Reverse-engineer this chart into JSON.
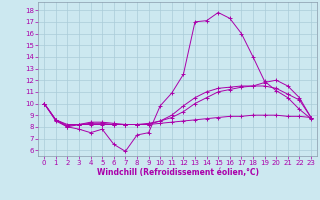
{
  "xlabel": "Windchill (Refroidissement éolien,°C)",
  "background_color": "#cce8f0",
  "grid_color": "#aaccd8",
  "line_color": "#aa00aa",
  "spine_color": "#8899aa",
  "xlim": [
    -0.5,
    23.5
  ],
  "ylim": [
    5.5,
    18.7
  ],
  "xticks": [
    0,
    1,
    2,
    3,
    4,
    5,
    6,
    7,
    8,
    9,
    10,
    11,
    12,
    13,
    14,
    15,
    16,
    17,
    18,
    19,
    20,
    21,
    22,
    23
  ],
  "yticks": [
    6,
    7,
    8,
    9,
    10,
    11,
    12,
    13,
    14,
    15,
    16,
    17,
    18
  ],
  "line1_x": [
    0,
    1,
    2,
    3,
    4,
    5,
    6,
    7,
    8,
    9,
    10,
    11,
    12,
    13,
    14,
    15,
    16,
    17,
    18,
    19,
    20,
    21,
    22,
    23
  ],
  "line1_y": [
    10.0,
    8.5,
    8.0,
    7.8,
    7.5,
    7.8,
    6.5,
    5.9,
    7.3,
    7.5,
    9.8,
    10.9,
    12.5,
    17.0,
    17.1,
    17.8,
    17.3,
    16.0,
    14.0,
    11.9,
    11.1,
    10.5,
    9.5,
    8.7
  ],
  "line2_x": [
    0,
    1,
    2,
    3,
    4,
    5,
    6,
    7,
    8,
    9,
    10,
    11,
    12,
    13,
    14,
    15,
    16,
    17,
    18,
    19,
    20,
    21,
    22,
    23
  ],
  "line2_y": [
    10.0,
    8.6,
    8.1,
    8.2,
    8.3,
    8.3,
    8.2,
    8.2,
    8.2,
    8.3,
    8.5,
    8.8,
    9.3,
    10.0,
    10.5,
    11.0,
    11.2,
    11.4,
    11.5,
    11.8,
    12.0,
    11.5,
    10.5,
    8.8
  ],
  "line3_x": [
    0,
    1,
    2,
    3,
    4,
    5,
    6,
    7,
    8,
    9,
    10,
    11,
    12,
    13,
    14,
    15,
    16,
    17,
    18,
    19,
    20,
    21,
    22,
    23
  ],
  "line3_y": [
    10.0,
    8.6,
    8.2,
    8.2,
    8.2,
    8.2,
    8.2,
    8.2,
    8.2,
    8.2,
    8.3,
    8.4,
    8.5,
    8.6,
    8.7,
    8.8,
    8.9,
    8.9,
    9.0,
    9.0,
    9.0,
    8.9,
    8.9,
    8.8
  ],
  "line4_x": [
    0,
    1,
    2,
    3,
    4,
    5,
    6,
    7,
    8,
    9,
    10,
    11,
    12,
    13,
    14,
    15,
    16,
    17,
    18,
    19,
    20,
    21,
    22,
    23
  ],
  "line4_y": [
    10.0,
    8.6,
    8.0,
    8.2,
    8.4,
    8.4,
    8.3,
    8.2,
    8.2,
    8.2,
    8.5,
    9.0,
    9.8,
    10.5,
    11.0,
    11.3,
    11.4,
    11.5,
    11.5,
    11.5,
    11.3,
    10.8,
    10.3,
    8.8
  ],
  "tick_fontsize": 5.0,
  "xlabel_fontsize": 5.5
}
